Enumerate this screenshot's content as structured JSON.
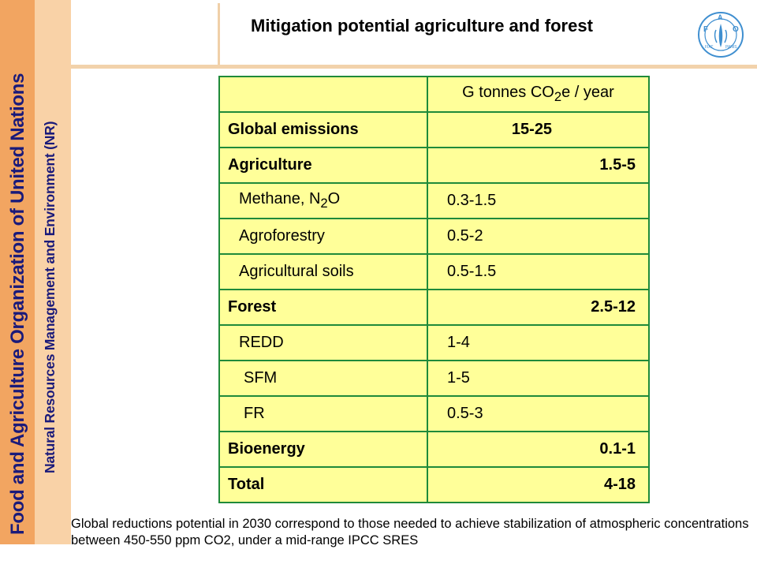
{
  "sidebar": {
    "org_name": "Food and Agriculture Organization of United Nations",
    "department": "Natural Resources Management and Environment (NR)"
  },
  "header": {
    "title": "Mitigation potential agriculture and forest",
    "logo_text": "FAO",
    "logo_motto_left": "FIAT",
    "logo_motto_right": "PANIS"
  },
  "table": {
    "unit_prefix": "G tonnes CO",
    "unit_sub": "2",
    "unit_suffix": "e / year",
    "rows": [
      {
        "label": "Global emissions",
        "value": "15-25"
      },
      {
        "label": "Agriculture",
        "value": "1.5-5"
      },
      {
        "label_prefix": "Methane, N",
        "label_sub": "2",
        "label_suffix": "O",
        "value": "0.3-1.5"
      },
      {
        "label": "Agroforestry",
        "value": "0.5-2"
      },
      {
        "label": "Agricultural soils",
        "value": "0.5-1.5"
      },
      {
        "label": "Forest",
        "value": "2.5-12"
      },
      {
        "label": "REDD",
        "value": "1-4"
      },
      {
        "label": "SFM",
        "value": "1-5"
      },
      {
        "label": "FR",
        "value": "0.5-3"
      },
      {
        "label": "Bioenergy",
        "value": "0.1-1"
      },
      {
        "label": "Total",
        "value": "4-18"
      }
    ]
  },
  "footnote": "Global reductions potential in 2030 correspond to those needed to achieve stabilization of atmospheric concentrations between 450-550 ppm CO2, under a mid-range IPCC SRES",
  "colors": {
    "sidebar_outer": "#f2a561",
    "sidebar_inner": "#f9d2a7",
    "table_fill": "#ffff99",
    "table_border": "#1f8a3a",
    "logo_blue": "#3f8fd0"
  }
}
